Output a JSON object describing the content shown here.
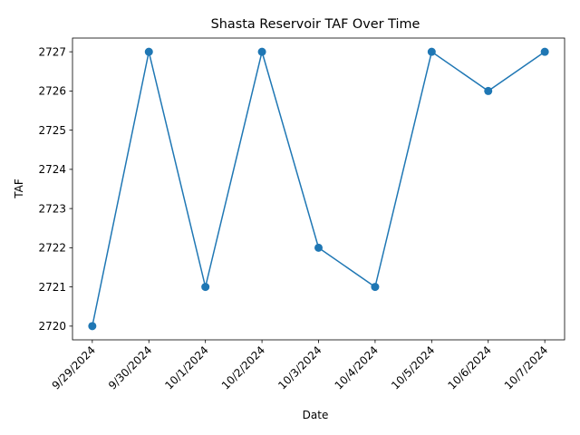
{
  "chart_data": {
    "type": "line",
    "title": "Shasta Reservoir TAF Over Time",
    "xlabel": "Date",
    "ylabel": "TAF",
    "categories": [
      "9/29/2024",
      "9/30/2024",
      "10/1/2024",
      "10/2/2024",
      "10/3/2024",
      "10/4/2024",
      "10/5/2024",
      "10/6/2024",
      "10/7/2024"
    ],
    "series": [
      {
        "values": [
          2720,
          2727,
          2721,
          2727,
          2722,
          2721,
          2727,
          2726,
          2727
        ]
      }
    ],
    "ylim": [
      2719.65,
      2727.35
    ],
    "yticks": [
      2720,
      2721,
      2722,
      2723,
      2724,
      2725,
      2726,
      2727
    ],
    "grid": false,
    "markers": true,
    "line_color": "#1f77b4"
  }
}
